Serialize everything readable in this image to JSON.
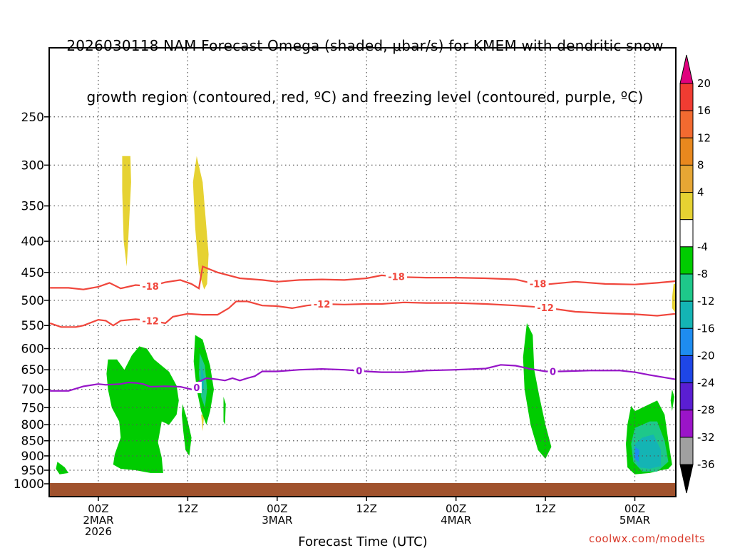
{
  "title": {
    "line1": "2026030118 NAM Forecast Omega (shaded, μbar/s) for KMEM with dendritic snow",
    "line2": "growth region (contoured, red, ºC) and freezing level (contoured, purple, ºC)"
  },
  "credit": "coolwx.com/modelts",
  "chart_data": {
    "type": "contour",
    "title": "2026030118 NAM Forecast Omega (shaded, μbar/s) for KMEM with dendritic snow growth region (contoured, red, ºC) and freezing level (contoured, purple, ºC)",
    "xlabel": "Forecast Time (UTC)",
    "ylabel": "",
    "x_start_hours": -6.5,
    "x_end_hours": 77.5,
    "x_ticks": [
      {
        "hours": 0,
        "lines": [
          "00Z",
          "2MAR",
          "2026"
        ]
      },
      {
        "hours": 12,
        "lines": [
          "12Z"
        ]
      },
      {
        "hours": 24,
        "lines": [
          "00Z",
          "3MAR"
        ]
      },
      {
        "hours": 36,
        "lines": [
          "12Z"
        ]
      },
      {
        "hours": 48,
        "lines": [
          "00Z",
          "4MAR"
        ]
      },
      {
        "hours": 60,
        "lines": [
          "12Z"
        ]
      },
      {
        "hours": 72,
        "lines": [
          "00Z",
          "5MAR"
        ]
      }
    ],
    "y_ticks": [
      250,
      300,
      350,
      400,
      450,
      500,
      550,
      600,
      650,
      700,
      750,
      800,
      850,
      900,
      950,
      1000
    ],
    "ylim": [
      200,
      1000
    ],
    "y_scale": "log-pressure",
    "grid": true,
    "colorbar": {
      "labels": [
        "20",
        "16",
        "12",
        "8",
        "4",
        "-4",
        "-8",
        "-12",
        "-16",
        "-20",
        "-24",
        "-28",
        "-32",
        "-36"
      ],
      "colors": [
        "#e0007e",
        "#f03c32",
        "#f26a30",
        "#e8881e",
        "#e6a634",
        "#e6d232",
        "#ffffff",
        "#00cc00",
        "#1ec88a",
        "#14b4b4",
        "#1e8cf0",
        "#1e46e6",
        "#5a1ed2",
        "#9b14c8",
        "#a0a0a0",
        "#000000"
      ]
    },
    "contours": [
      {
        "label": "-18",
        "color": "#f0463c",
        "points": [
          [
            -6.5,
            477
          ],
          [
            -4,
            477
          ],
          [
            -2,
            480
          ],
          [
            0,
            475
          ],
          [
            1.5,
            468
          ],
          [
            3,
            478
          ],
          [
            5,
            472
          ],
          [
            7,
            474
          ],
          [
            9,
            467
          ],
          [
            11,
            463
          ],
          [
            12.5,
            470
          ],
          [
            13.5,
            478
          ],
          [
            14,
            440
          ],
          [
            16,
            450
          ],
          [
            19,
            460
          ],
          [
            22,
            463
          ],
          [
            24,
            466
          ],
          [
            27,
            463
          ],
          [
            30,
            462
          ],
          [
            33,
            463
          ],
          [
            36,
            460
          ],
          [
            38,
            455
          ],
          [
            41,
            458
          ],
          [
            44,
            459
          ],
          [
            48,
            459
          ],
          [
            52,
            460
          ],
          [
            56,
            462
          ],
          [
            58,
            468
          ],
          [
            60,
            471
          ],
          [
            64,
            466
          ],
          [
            68,
            470
          ],
          [
            72,
            471
          ],
          [
            75,
            468
          ],
          [
            77.5,
            465
          ]
        ]
      },
      {
        "label": "-12",
        "color": "#f0463c",
        "points": [
          [
            -6.5,
            545
          ],
          [
            -5,
            553
          ],
          [
            -3,
            553
          ],
          [
            -2,
            550
          ],
          [
            0,
            538
          ],
          [
            1,
            540
          ],
          [
            2,
            550
          ],
          [
            3,
            540
          ],
          [
            5,
            537
          ],
          [
            7,
            540
          ],
          [
            9,
            545
          ],
          [
            10,
            532
          ],
          [
            12,
            526
          ],
          [
            14,
            528
          ],
          [
            16,
            528
          ],
          [
            17.5,
            515
          ],
          [
            18.5,
            502
          ],
          [
            20,
            502
          ],
          [
            22,
            510
          ],
          [
            24,
            511
          ],
          [
            26,
            515
          ],
          [
            28,
            510
          ],
          [
            30,
            507
          ],
          [
            33,
            508
          ],
          [
            36,
            507
          ],
          [
            38,
            507
          ],
          [
            41,
            504
          ],
          [
            44,
            505
          ],
          [
            48,
            505
          ],
          [
            52,
            507
          ],
          [
            56,
            510
          ],
          [
            60,
            514
          ],
          [
            64,
            522
          ],
          [
            68,
            525
          ],
          [
            72,
            527
          ],
          [
            75,
            530
          ],
          [
            77.5,
            526
          ]
        ]
      },
      {
        "label": "0",
        "color": "#9614c8",
        "points": [
          [
            -6.5,
            704
          ],
          [
            -4,
            704
          ],
          [
            -2,
            692
          ],
          [
            0,
            686
          ],
          [
            1,
            688
          ],
          [
            3,
            686
          ],
          [
            4,
            682
          ],
          [
            5,
            683
          ],
          [
            6,
            686
          ],
          [
            7,
            693
          ],
          [
            9,
            692
          ],
          [
            11,
            693
          ],
          [
            12.5,
            700
          ],
          [
            13,
            705
          ],
          [
            13.5,
            680
          ],
          [
            14.5,
            671
          ],
          [
            16,
            674
          ],
          [
            17,
            677
          ],
          [
            18,
            671
          ],
          [
            19,
            677
          ],
          [
            20,
            671
          ],
          [
            21,
            666
          ],
          [
            22,
            654
          ],
          [
            24,
            654
          ],
          [
            27,
            650
          ],
          [
            30,
            648
          ],
          [
            33,
            650
          ],
          [
            36,
            654
          ],
          [
            38,
            656
          ],
          [
            41,
            656
          ],
          [
            44,
            652
          ],
          [
            48,
            650
          ],
          [
            52,
            647
          ],
          [
            54,
            638
          ],
          [
            56,
            640
          ],
          [
            58,
            648
          ],
          [
            60,
            654
          ],
          [
            62,
            654
          ],
          [
            66,
            652
          ],
          [
            70,
            652
          ],
          [
            72,
            656
          ],
          [
            74,
            663
          ],
          [
            77.5,
            674
          ]
        ]
      }
    ],
    "shaded_regions": [
      {
        "label": "4",
        "color": "#e6d232",
        "points": [
          [
            3.2,
            290
          ],
          [
            4.3,
            290
          ],
          [
            4.4,
            320
          ],
          [
            4.0,
            400
          ],
          [
            3.8,
            440
          ],
          [
            3.4,
            400
          ],
          [
            3.2,
            330
          ]
        ]
      },
      {
        "label": "4",
        "color": "#e6d232",
        "points": [
          [
            12.7,
            320
          ],
          [
            13.2,
            290
          ],
          [
            14.0,
            320
          ],
          [
            14.8,
            420
          ],
          [
            14.6,
            470
          ],
          [
            14.2,
            480
          ],
          [
            13.5,
            450
          ],
          [
            13.0,
            380
          ]
        ]
      },
      {
        "label": "4",
        "color": "#e6d232",
        "points": [
          [
            77.2,
            470
          ],
          [
            77.5,
            470
          ],
          [
            77.5,
            525
          ],
          [
            77.0,
            515
          ],
          [
            77.0,
            495
          ]
        ]
      },
      {
        "label": "4",
        "color": "#e6d232",
        "points": [
          [
            13.8,
            770
          ],
          [
            14.2,
            770
          ],
          [
            14.0,
            820
          ]
        ]
      },
      {
        "label": "-4",
        "color": "#00cc00",
        "points": [
          [
            1.3,
            625
          ],
          [
            2.5,
            625
          ],
          [
            3.5,
            650
          ],
          [
            4.5,
            615
          ],
          [
            5.5,
            595
          ],
          [
            6.5,
            600
          ],
          [
            7.5,
            625
          ],
          [
            8.5,
            640
          ],
          [
            9.5,
            655
          ],
          [
            10.5,
            690
          ],
          [
            10.8,
            730
          ],
          [
            10.5,
            770
          ],
          [
            9.5,
            800
          ],
          [
            8.5,
            790
          ],
          [
            8.0,
            855
          ],
          [
            8.5,
            905
          ],
          [
            8.7,
            960
          ],
          [
            7,
            960
          ],
          [
            5,
            950
          ],
          [
            3.0,
            945
          ],
          [
            2.0,
            930
          ],
          [
            2.2,
            895
          ],
          [
            3.0,
            840
          ],
          [
            2.8,
            790
          ],
          [
            1.8,
            750
          ],
          [
            1.3,
            700
          ],
          [
            1.1,
            660
          ]
        ]
      },
      {
        "label": "-4",
        "color": "#00cc00",
        "points": [
          [
            13.0,
            570
          ],
          [
            14.0,
            580
          ],
          [
            15.0,
            640
          ],
          [
            15.5,
            700
          ],
          [
            15.0,
            760
          ],
          [
            14.5,
            800
          ],
          [
            13.8,
            760
          ],
          [
            13.2,
            700
          ],
          [
            12.8,
            630
          ]
        ]
      },
      {
        "label": "-4",
        "color": "#00cc00",
        "points": [
          [
            11.3,
            740
          ],
          [
            12.0,
            790
          ],
          [
            12.5,
            840
          ],
          [
            12.2,
            900
          ],
          [
            11.7,
            880
          ],
          [
            11.4,
            820
          ],
          [
            11.2,
            770
          ]
        ]
      },
      {
        "label": "-4",
        "color": "#00cc00",
        "points": [
          [
            16.8,
            720
          ],
          [
            17.1,
            740
          ],
          [
            17.0,
            800
          ],
          [
            16.8,
            790
          ]
        ]
      },
      {
        "label": "-4",
        "color": "#00cc00",
        "points": [
          [
            -5.5,
            920
          ],
          [
            -4.5,
            940
          ],
          [
            -4.0,
            960
          ],
          [
            -5.2,
            965
          ],
          [
            -5.7,
            945
          ]
        ]
      },
      {
        "label": "-4",
        "color": "#00cc00",
        "points": [
          [
            57.5,
            545
          ],
          [
            58.3,
            570
          ],
          [
            58.5,
            650
          ],
          [
            59.2,
            720
          ],
          [
            60.0,
            800
          ],
          [
            60.8,
            870
          ],
          [
            60.0,
            910
          ],
          [
            59.0,
            880
          ],
          [
            58.0,
            800
          ],
          [
            57.2,
            700
          ],
          [
            57.0,
            620
          ]
        ]
      },
      {
        "label": "-4",
        "color": "#00cc00",
        "points": [
          [
            71.5,
            745
          ],
          [
            72.0,
            760
          ],
          [
            73.0,
            750
          ],
          [
            74.0,
            740
          ],
          [
            75.0,
            730
          ],
          [
            76.0,
            770
          ],
          [
            76.5,
            850
          ],
          [
            77.0,
            930
          ],
          [
            76.5,
            945
          ],
          [
            75.5,
            950
          ],
          [
            74.0,
            960
          ],
          [
            72.0,
            965
          ],
          [
            71.0,
            940
          ],
          [
            70.8,
            860
          ],
          [
            71.0,
            800
          ]
        ]
      },
      {
        "label": "-4",
        "color": "#00cc00",
        "points": [
          [
            77.0,
            700
          ],
          [
            77.3,
            720
          ],
          [
            77.0,
            760
          ],
          [
            76.8,
            730
          ]
        ]
      },
      {
        "label": "-8",
        "color": "#1ec88a",
        "points": [
          [
            13.6,
            610
          ],
          [
            14.3,
            640
          ],
          [
            14.6,
            700
          ],
          [
            14.3,
            750
          ],
          [
            13.8,
            720
          ],
          [
            13.5,
            660
          ]
        ]
      },
      {
        "label": "-8",
        "color": "#1ec88a",
        "points": [
          [
            72.0,
            810
          ],
          [
            73.0,
            800
          ],
          [
            74.0,
            790
          ],
          [
            75.0,
            790
          ],
          [
            76.0,
            850
          ],
          [
            76.5,
            920
          ],
          [
            75.0,
            955
          ],
          [
            73.0,
            955
          ],
          [
            71.8,
            920
          ],
          [
            71.5,
            860
          ]
        ]
      },
      {
        "label": "-12",
        "color": "#14b4b4",
        "points": [
          [
            13.8,
            640
          ],
          [
            14.2,
            670
          ],
          [
            14.1,
            710
          ],
          [
            13.8,
            690
          ]
        ]
      },
      {
        "label": "-12",
        "color": "#14b4b4",
        "points": [
          [
            72.0,
            860
          ],
          [
            73.0,
            840
          ],
          [
            74.5,
            830
          ],
          [
            75.5,
            880
          ],
          [
            75.5,
            935
          ],
          [
            74.0,
            945
          ],
          [
            72.5,
            940
          ],
          [
            71.8,
            900
          ]
        ]
      },
      {
        "label": "-16",
        "color": "#1e8cf0",
        "points": [
          [
            72.0,
            870
          ],
          [
            72.6,
            880
          ],
          [
            72.5,
            920
          ],
          [
            72.0,
            910
          ]
        ]
      }
    ]
  }
}
